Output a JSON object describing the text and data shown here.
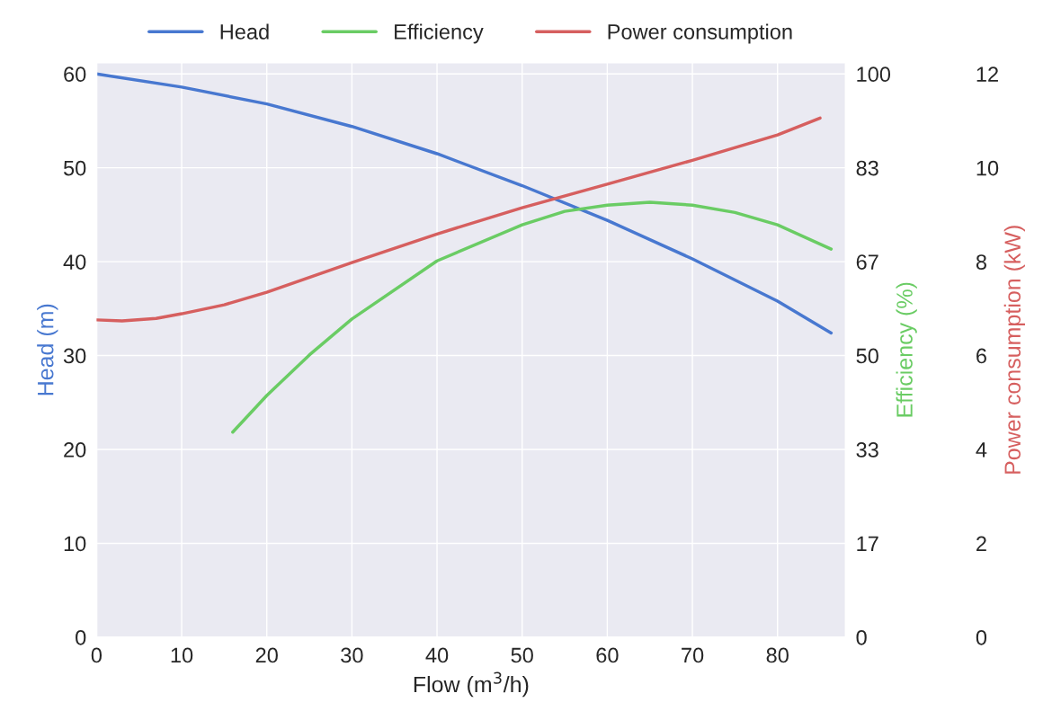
{
  "chart_data": {
    "type": "line",
    "xlabel": "Flow (m$^{3}$/h)",
    "ylabel": "Head (m)",
    "y2label": "Efficiency (%)",
    "y3label": "Power consumption (kW)",
    "xlim": [
      0,
      88
    ],
    "xticks": [
      0,
      10,
      20,
      30,
      40,
      50,
      60,
      70,
      80
    ],
    "ylim": [
      0,
      61.2
    ],
    "yticks": [
      0,
      10,
      20,
      30,
      40,
      50,
      60
    ],
    "y2lim": [
      0,
      102
    ],
    "y2ticks": [
      0,
      {
        "value": 16.667,
        "label": "17"
      },
      {
        "value": 33.333,
        "label": "33"
      },
      50,
      {
        "value": 66.667,
        "label": "67"
      },
      {
        "value": 83.333,
        "label": "83"
      },
      100
    ],
    "y3lim": [
      0,
      12.24
    ],
    "y3ticks": [
      0,
      2,
      4,
      6,
      8,
      10,
      12
    ],
    "grid": true,
    "legend": "top",
    "line_style": "solid",
    "marker": "none",
    "series": [
      {
        "name": "Head",
        "color": "#4878d0",
        "axis": "y",
        "x": [
          0,
          10,
          20,
          30,
          40,
          50,
          60,
          70,
          80,
          86.3
        ],
        "values": [
          60,
          58.6,
          56.8,
          54.4,
          51.5,
          48.1,
          44.4,
          40.3,
          35.8,
          32.4
        ]
      },
      {
        "name": "Efficiency",
        "color": "#6acc64",
        "axis": "y2",
        "x": [
          16,
          20,
          25,
          30,
          40,
          50,
          55,
          60,
          65,
          70,
          75,
          80,
          86.3
        ],
        "values": [
          36.4,
          42.9,
          50.1,
          56.5,
          66.8,
          73.2,
          75.6,
          76.7,
          77.2,
          76.7,
          75.4,
          73.2,
          68.9
        ]
      },
      {
        "name": "Power consumption",
        "color": "#d65f5f",
        "axis": "y3",
        "x": [
          0,
          3,
          7,
          10,
          15,
          20,
          30,
          40,
          50,
          60,
          70,
          80,
          85
        ],
        "values": [
          6.76,
          6.74,
          6.79,
          6.89,
          7.08,
          7.35,
          7.98,
          8.59,
          9.15,
          9.65,
          10.16,
          10.7,
          11.06
        ]
      }
    ]
  }
}
